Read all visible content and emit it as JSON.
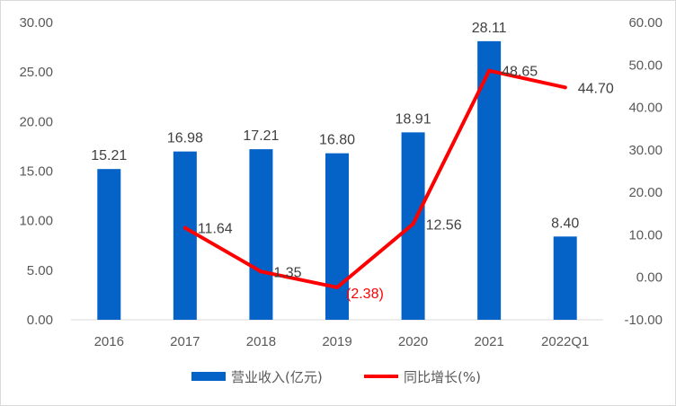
{
  "chart_data": {
    "type": "bar",
    "categories": [
      "2016",
      "2017",
      "2018",
      "2019",
      "2020",
      "2021",
      "2022Q1"
    ],
    "series": [
      {
        "name": "营业收入(亿元)",
        "type": "bar",
        "axis": "left",
        "color": "#0563C8",
        "values": [
          15.21,
          16.98,
          17.21,
          16.8,
          18.91,
          28.11,
          8.4
        ],
        "labels": [
          "15.21",
          "16.98",
          "17.21",
          "16.80",
          "18.91",
          "28.11",
          "8.40"
        ]
      },
      {
        "name": "同比增长(%)",
        "type": "line",
        "axis": "right",
        "color": "#FF0000",
        "values": [
          null,
          11.64,
          1.35,
          -2.38,
          12.56,
          48.65,
          44.7
        ],
        "labels": [
          null,
          "11.64",
          "1.35",
          "(2.38)",
          "12.56",
          "48.65",
          "44.70"
        ]
      }
    ],
    "y_left": {
      "ylim": [
        0,
        30
      ],
      "ticks": [
        "0.00",
        "5.00",
        "10.00",
        "15.00",
        "20.00",
        "25.00",
        "30.00"
      ]
    },
    "y_right": {
      "ylim": [
        -10,
        60
      ],
      "ticks": [
        "-10.00",
        "0.00",
        "10.00",
        "20.00",
        "30.00",
        "40.00",
        "50.00",
        "60.00"
      ]
    },
    "grid": false,
    "legend": "bottom-center",
    "negative_label_color": "#FF0000"
  }
}
